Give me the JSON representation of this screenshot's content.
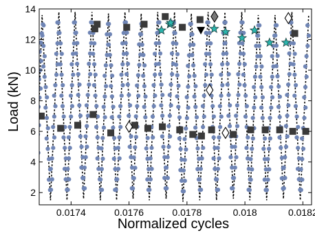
{
  "chart_data": {
    "type": "scatter",
    "title": "",
    "xlabel": "Normalized cycles",
    "ylabel": "Load (kN)",
    "xlim": [
      0.01729,
      0.01823
    ],
    "ylim": [
      1.2,
      14.0
    ],
    "x_ticks": [
      {
        "value": 0.0174,
        "label": "0.0174"
      },
      {
        "value": 0.0176,
        "label": "0.0176"
      },
      {
        "value": 0.0178,
        "label": "0.0178"
      },
      {
        "value": 0.018,
        "label": "0.018"
      },
      {
        "value": 0.0182,
        "label": "0.0182"
      }
    ],
    "y_ticks": [
      {
        "value": 2,
        "label": "2"
      },
      {
        "value": 4,
        "label": "4"
      },
      {
        "value": 6,
        "label": "6"
      },
      {
        "value": 8,
        "label": "8"
      },
      {
        "value": 10,
        "label": "10"
      },
      {
        "value": 12,
        "label": "12"
      },
      {
        "value": 14,
        "label": "14"
      }
    ],
    "grid": false,
    "legend": "none",
    "colors": {
      "cycle_line": "#000000",
      "measured_points": "#6f85b5",
      "square_markers": "#3a3a3a",
      "star_markers": "#2bb5ad",
      "diamond_markers": "#7a7a7a",
      "triangle_marker": "#000000"
    },
    "cycles": {
      "peaks_x": [
        0.0173,
        0.017358,
        0.017414,
        0.017472,
        0.017529,
        0.017586,
        0.017642,
        0.017699,
        0.017757,
        0.017815,
        0.017873,
        0.017931,
        0.017989,
        0.018046,
        0.018104,
        0.018162,
        0.01822
      ],
      "valleys_x": [
        0.017329,
        0.017386,
        0.017443,
        0.017501,
        0.017557,
        0.017614,
        0.01767,
        0.017728,
        0.017786,
        0.017844,
        0.017902,
        0.01796,
        0.018017,
        0.018075,
        0.018133,
        0.018191
      ],
      "peak_values": [
        13.6,
        13.8,
        13.8,
        13.8,
        13.7,
        13.8,
        13.7,
        13.8,
        13.8,
        13.7,
        13.8,
        13.8,
        13.8,
        13.6,
        13.6,
        13.8,
        13.6
      ],
      "valley_values": [
        1.5,
        1.5,
        1.6,
        1.5,
        1.5,
        1.6,
        1.5,
        1.6,
        1.4,
        1.5,
        1.5,
        1.6,
        1.5,
        1.5,
        1.6,
        1.5
      ]
    },
    "markers": {
      "squares": [
        [
          0.017297,
          7.0
        ],
        [
          0.017364,
          6.2
        ],
        [
          0.017423,
          6.4
        ],
        [
          0.017476,
          7.1
        ],
        [
          0.017482,
          12.7
        ],
        [
          0.01749,
          13.0
        ],
        [
          0.017537,
          5.9
        ],
        [
          0.017592,
          12.8
        ],
        [
          0.01762,
          6.4
        ],
        [
          0.017652,
          13.0
        ],
        [
          0.017665,
          6.2
        ],
        [
          0.017715,
          6.3
        ],
        [
          0.017725,
          13.5
        ],
        [
          0.017775,
          6.1
        ],
        [
          0.017784,
          12.8
        ],
        [
          0.01782,
          5.8
        ],
        [
          0.017845,
          13.3
        ],
        [
          0.01785,
          5.7
        ],
        [
          0.017885,
          6.1
        ],
        [
          0.01796,
          5.8
        ],
        [
          0.01802,
          6.1
        ],
        [
          0.01807,
          6.1
        ],
        [
          0.01812,
          6.1
        ],
        [
          0.018165,
          6.0
        ],
        [
          0.018172,
          12.4
        ],
        [
          0.01821,
          6.0
        ]
      ],
      "stars": [
        [
          0.017712,
          12.6
        ],
        [
          0.017741,
          13.0
        ],
        [
          0.017744,
          13.1
        ],
        [
          0.017894,
          12.7
        ],
        [
          0.017933,
          12.5
        ],
        [
          0.01799,
          12.1
        ],
        [
          0.018033,
          12.6
        ],
        [
          0.018085,
          11.8
        ],
        [
          0.018142,
          11.8
        ]
      ],
      "diamonds": [
        [
          0.0176,
          6.3
        ],
        [
          0.017878,
          8.7
        ],
        [
          0.017895,
          13.5
        ],
        [
          0.017933,
          5.9
        ],
        [
          0.01815,
          13.4
        ]
      ],
      "triangles": [
        [
          0.017848,
          12.6
        ]
      ]
    }
  }
}
